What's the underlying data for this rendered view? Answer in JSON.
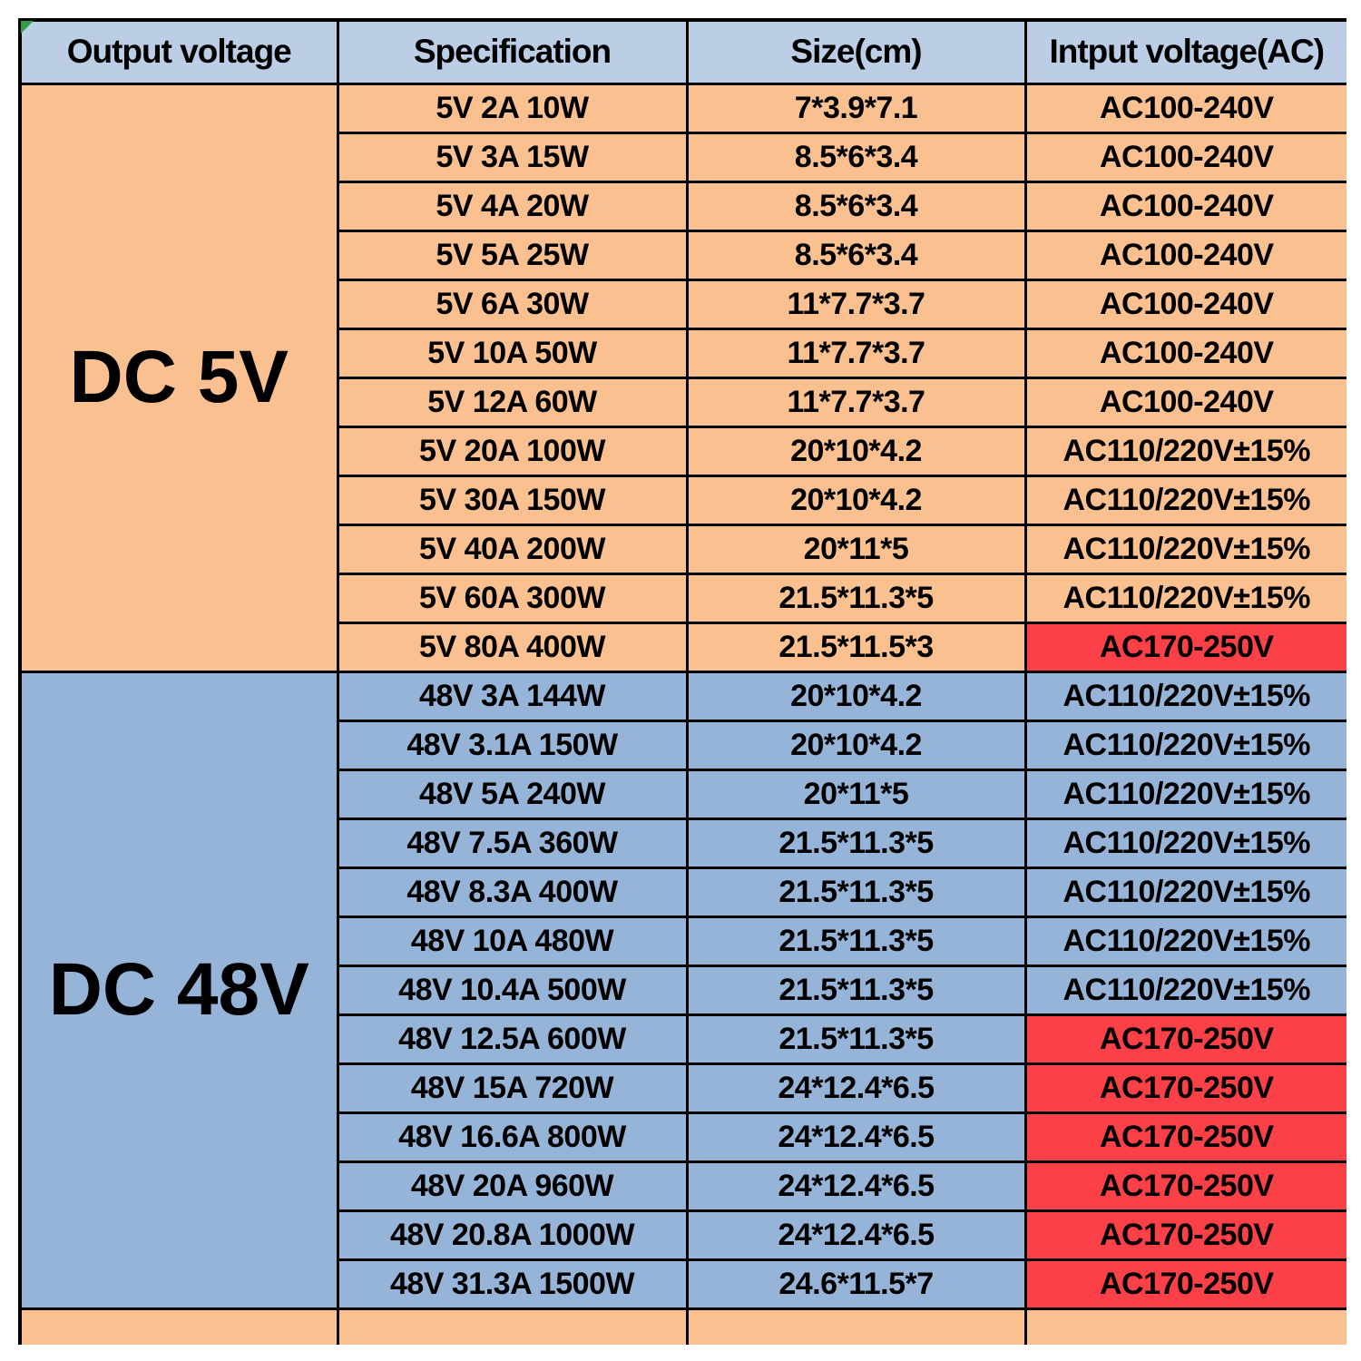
{
  "table": {
    "headers": [
      "Output voltage",
      "Specification",
      "Size(cm)",
      "Intput voltage(AC)"
    ],
    "sections": [
      {
        "label": "DC 5V",
        "theme": "orange",
        "rows": [
          {
            "spec": "5V 2A 10W",
            "size": "7*3.9*7.1",
            "input": "AC100-240V",
            "red": false
          },
          {
            "spec": "5V 3A 15W",
            "size": "8.5*6*3.4",
            "input": "AC100-240V",
            "red": false
          },
          {
            "spec": "5V 4A 20W",
            "size": "8.5*6*3.4",
            "input": "AC100-240V",
            "red": false
          },
          {
            "spec": "5V 5A 25W",
            "size": "8.5*6*3.4",
            "input": "AC100-240V",
            "red": false
          },
          {
            "spec": "5V 6A 30W",
            "size": "11*7.7*3.7",
            "input": "AC100-240V",
            "red": false
          },
          {
            "spec": "5V 10A 50W",
            "size": "11*7.7*3.7",
            "input": "AC100-240V",
            "red": false
          },
          {
            "spec": "5V 12A 60W",
            "size": "11*7.7*3.7",
            "input": "AC100-240V",
            "red": false
          },
          {
            "spec": "5V 20A 100W",
            "size": "20*10*4.2",
            "input": "AC110/220V±15%",
            "red": false
          },
          {
            "spec": "5V 30A 150W",
            "size": "20*10*4.2",
            "input": "AC110/220V±15%",
            "red": false
          },
          {
            "spec": "5V 40A 200W",
            "size": "20*11*5",
            "input": "AC110/220V±15%",
            "red": false
          },
          {
            "spec": "5V 60A 300W",
            "size": "21.5*11.3*5",
            "input": "AC110/220V±15%",
            "red": false
          },
          {
            "spec": "5V 80A 400W",
            "size": "21.5*11.5*3",
            "input": "AC170-250V",
            "red": true
          }
        ]
      },
      {
        "label": "DC 48V",
        "theme": "blue",
        "rows": [
          {
            "spec": "48V 3A 144W",
            "size": "20*10*4.2",
            "input": "AC110/220V±15%",
            "red": false
          },
          {
            "spec": "48V 3.1A 150W",
            "size": "20*10*4.2",
            "input": "AC110/220V±15%",
            "red": false
          },
          {
            "spec": "48V 5A 240W",
            "size": "20*11*5",
            "input": "AC110/220V±15%",
            "red": false
          },
          {
            "spec": "48V 7.5A 360W",
            "size": "21.5*11.3*5",
            "input": "AC110/220V±15%",
            "red": false
          },
          {
            "spec": "48V 8.3A 400W",
            "size": "21.5*11.3*5",
            "input": "AC110/220V±15%",
            "red": false
          },
          {
            "spec": "48V 10A 480W",
            "size": "21.5*11.3*5",
            "input": "AC110/220V±15%",
            "red": false
          },
          {
            "spec": "48V 10.4A 500W",
            "size": "21.5*11.3*5",
            "input": "AC110/220V±15%",
            "red": false
          },
          {
            "spec": "48V 12.5A 600W",
            "size": "21.5*11.3*5",
            "input": "AC170-250V",
            "red": true
          },
          {
            "spec": "48V 15A 720W",
            "size": "24*12.4*6.5",
            "input": "AC170-250V",
            "red": true
          },
          {
            "spec": "48V 16.6A 800W",
            "size": "24*12.4*6.5",
            "input": "AC170-250V",
            "red": true
          },
          {
            "spec": "48V 20A 960W",
            "size": "24*12.4*6.5",
            "input": "AC170-250V",
            "red": true
          },
          {
            "spec": "48V 20.8A 1000W",
            "size": "24*12.4*6.5",
            "input": "AC170-250V",
            "red": true
          },
          {
            "spec": "48V 31.3A 1500W",
            "size": "24.6*11.5*7",
            "input": "AC170-250V",
            "red": true
          }
        ]
      }
    ],
    "partial_row": {
      "theme": "orange",
      "cells": [
        "",
        "",
        "",
        ""
      ]
    }
  },
  "colors": {
    "header_bg": "#bccee5",
    "orange_bg": "#fac090",
    "blue_bg": "#96b4d8",
    "red_bg": "#fb4147",
    "border": "#000000",
    "marker_green": "#2ea043"
  }
}
